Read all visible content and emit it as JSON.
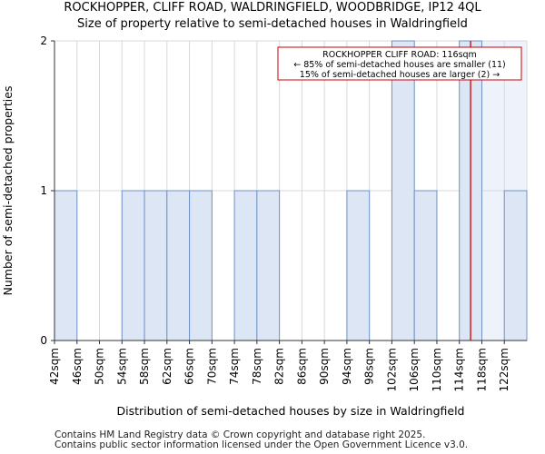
{
  "title_line1": "ROCKHOPPER, CLIFF ROAD, WALDRINGFIELD, WOODBRIDGE, IP12 4QL",
  "title_line2": "Size of property relative to semi-detached houses in Waldringfield",
  "footer_line1": "Contains HM Land Registry data © Crown copyright and database right 2025.",
  "footer_line2": "Contains public sector information licensed under the Open Government Licence v3.0.",
  "colors": {
    "bar_fill": "#dce6f5",
    "bar_stroke": "#6f93c8",
    "marker": "#cc0000",
    "grid": "#d8d8d8"
  },
  "chart_data": {
    "type": "bar",
    "xlabel": "Distribution of semi-detached houses by size in Waldringfield",
    "ylabel": "Number of semi-detached properties",
    "categories": [
      "42sqm",
      "46sqm",
      "50sqm",
      "54sqm",
      "58sqm",
      "62sqm",
      "66sqm",
      "70sqm",
      "74sqm",
      "78sqm",
      "82sqm",
      "86sqm",
      "90sqm",
      "94sqm",
      "98sqm",
      "102sqm",
      "106sqm",
      "110sqm",
      "114sqm",
      "118sqm",
      "122sqm"
    ],
    "values": [
      1,
      0,
      0,
      1,
      1,
      1,
      1,
      0,
      1,
      1,
      0,
      0,
      0,
      1,
      0,
      2,
      1,
      0,
      2,
      0,
      1
    ],
    "bin_start": 42,
    "bin_width": 4,
    "ylim": [
      0,
      2
    ],
    "yticks": [
      0,
      1,
      2
    ],
    "grid": true,
    "highlight_from_sqm": 118,
    "marker_sqm": 116,
    "annotation": {
      "line1": "ROCKHOPPER CLIFF ROAD: 116sqm",
      "line2": "← 85% of semi-detached houses are smaller (11)",
      "line3": "15% of semi-detached houses are larger (2) →"
    }
  }
}
